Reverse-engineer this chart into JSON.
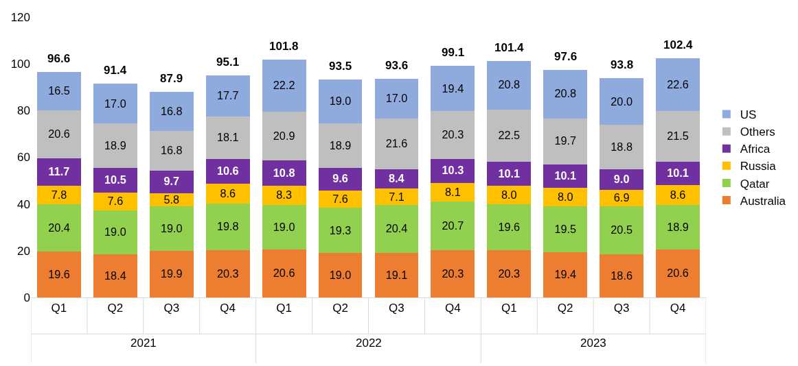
{
  "chart_data": {
    "type": "bar",
    "stacked": true,
    "categories": [
      "Q1",
      "Q2",
      "Q3",
      "Q4",
      "Q1",
      "Q2",
      "Q3",
      "Q4",
      "Q1",
      "Q2",
      "Q3",
      "Q4"
    ],
    "series": [
      {
        "name": "Australia",
        "color": "#ed7d31",
        "values": [
          19.6,
          18.4,
          19.9,
          20.3,
          20.6,
          19.0,
          19.1,
          20.3,
          20.3,
          19.4,
          18.6,
          20.6
        ],
        "value_labels": [
          "19.6",
          "18.4",
          "19.9",
          "20.3",
          "20.6",
          "19.0",
          "19.1",
          "20.3",
          "20.3",
          "19.4",
          "18.6",
          "20.6"
        ]
      },
      {
        "name": "Qatar",
        "color": "#92d050",
        "values": [
          20.4,
          19.0,
          19.0,
          19.8,
          19.0,
          19.3,
          20.4,
          20.7,
          19.6,
          19.5,
          20.5,
          18.9
        ],
        "value_labels": [
          "20.4",
          "19.0",
          "19.0",
          "19.8",
          "19.0",
          "19.3",
          "20.4",
          "20.7",
          "19.6",
          "19.5",
          "20.5",
          "18.9"
        ]
      },
      {
        "name": "Russia",
        "color": "#ffc000",
        "values": [
          7.8,
          7.6,
          5.8,
          8.6,
          8.3,
          7.6,
          7.1,
          8.1,
          8.0,
          8.0,
          6.9,
          8.6
        ],
        "value_labels": [
          "7.8",
          "7.6",
          "5.8",
          "8.6",
          "8.3",
          "7.6",
          "7.1",
          "8.1",
          "8.0",
          "8.0",
          "6.9",
          "8.6"
        ]
      },
      {
        "name": "Africa",
        "color": "#7030a0",
        "values": [
          11.7,
          10.5,
          9.7,
          10.6,
          10.8,
          9.6,
          8.4,
          10.3,
          10.1,
          10.1,
          9.0,
          10.1
        ],
        "value_labels": [
          "11.7",
          "10.5",
          "9.7",
          "10.6",
          "10.8",
          "9.6",
          "8.4",
          "10.3",
          "10.1",
          "10.1",
          "9.0",
          "10.1"
        ]
      },
      {
        "name": "Others",
        "color": "#bfbfbf",
        "values": [
          20.6,
          18.9,
          16.8,
          18.1,
          20.9,
          18.9,
          21.6,
          20.3,
          22.5,
          19.7,
          18.8,
          21.5
        ],
        "value_labels": [
          "20.6",
          "18.9",
          "16.8",
          "18.1",
          "20.9",
          "18.9",
          "21.6",
          "20.3",
          "22.5",
          "19.7",
          "18.8",
          "21.5"
        ]
      },
      {
        "name": "US",
        "color": "#8faadc",
        "values": [
          16.5,
          17.0,
          16.8,
          17.7,
          22.2,
          19.0,
          17.0,
          19.4,
          20.8,
          20.8,
          20.0,
          22.6
        ],
        "value_labels": [
          "16.5",
          "17.0",
          "16.8",
          "17.7",
          "22.2",
          "19.0",
          "17.0",
          "19.4",
          "20.8",
          "20.8",
          "20.0",
          "22.6"
        ]
      }
    ],
    "totals": [
      "96.6",
      "91.4",
      "87.9",
      "95.1",
      "101.8",
      "93.5",
      "93.6",
      "99.1",
      "101.4",
      "97.6",
      "93.8",
      "102.4"
    ],
    "annotations": [
      "2021",
      "2022",
      "2023"
    ],
    "ylim": [
      0,
      120
    ],
    "yticks": [
      0,
      20,
      40,
      60,
      80,
      100,
      120
    ],
    "legend": "right"
  }
}
